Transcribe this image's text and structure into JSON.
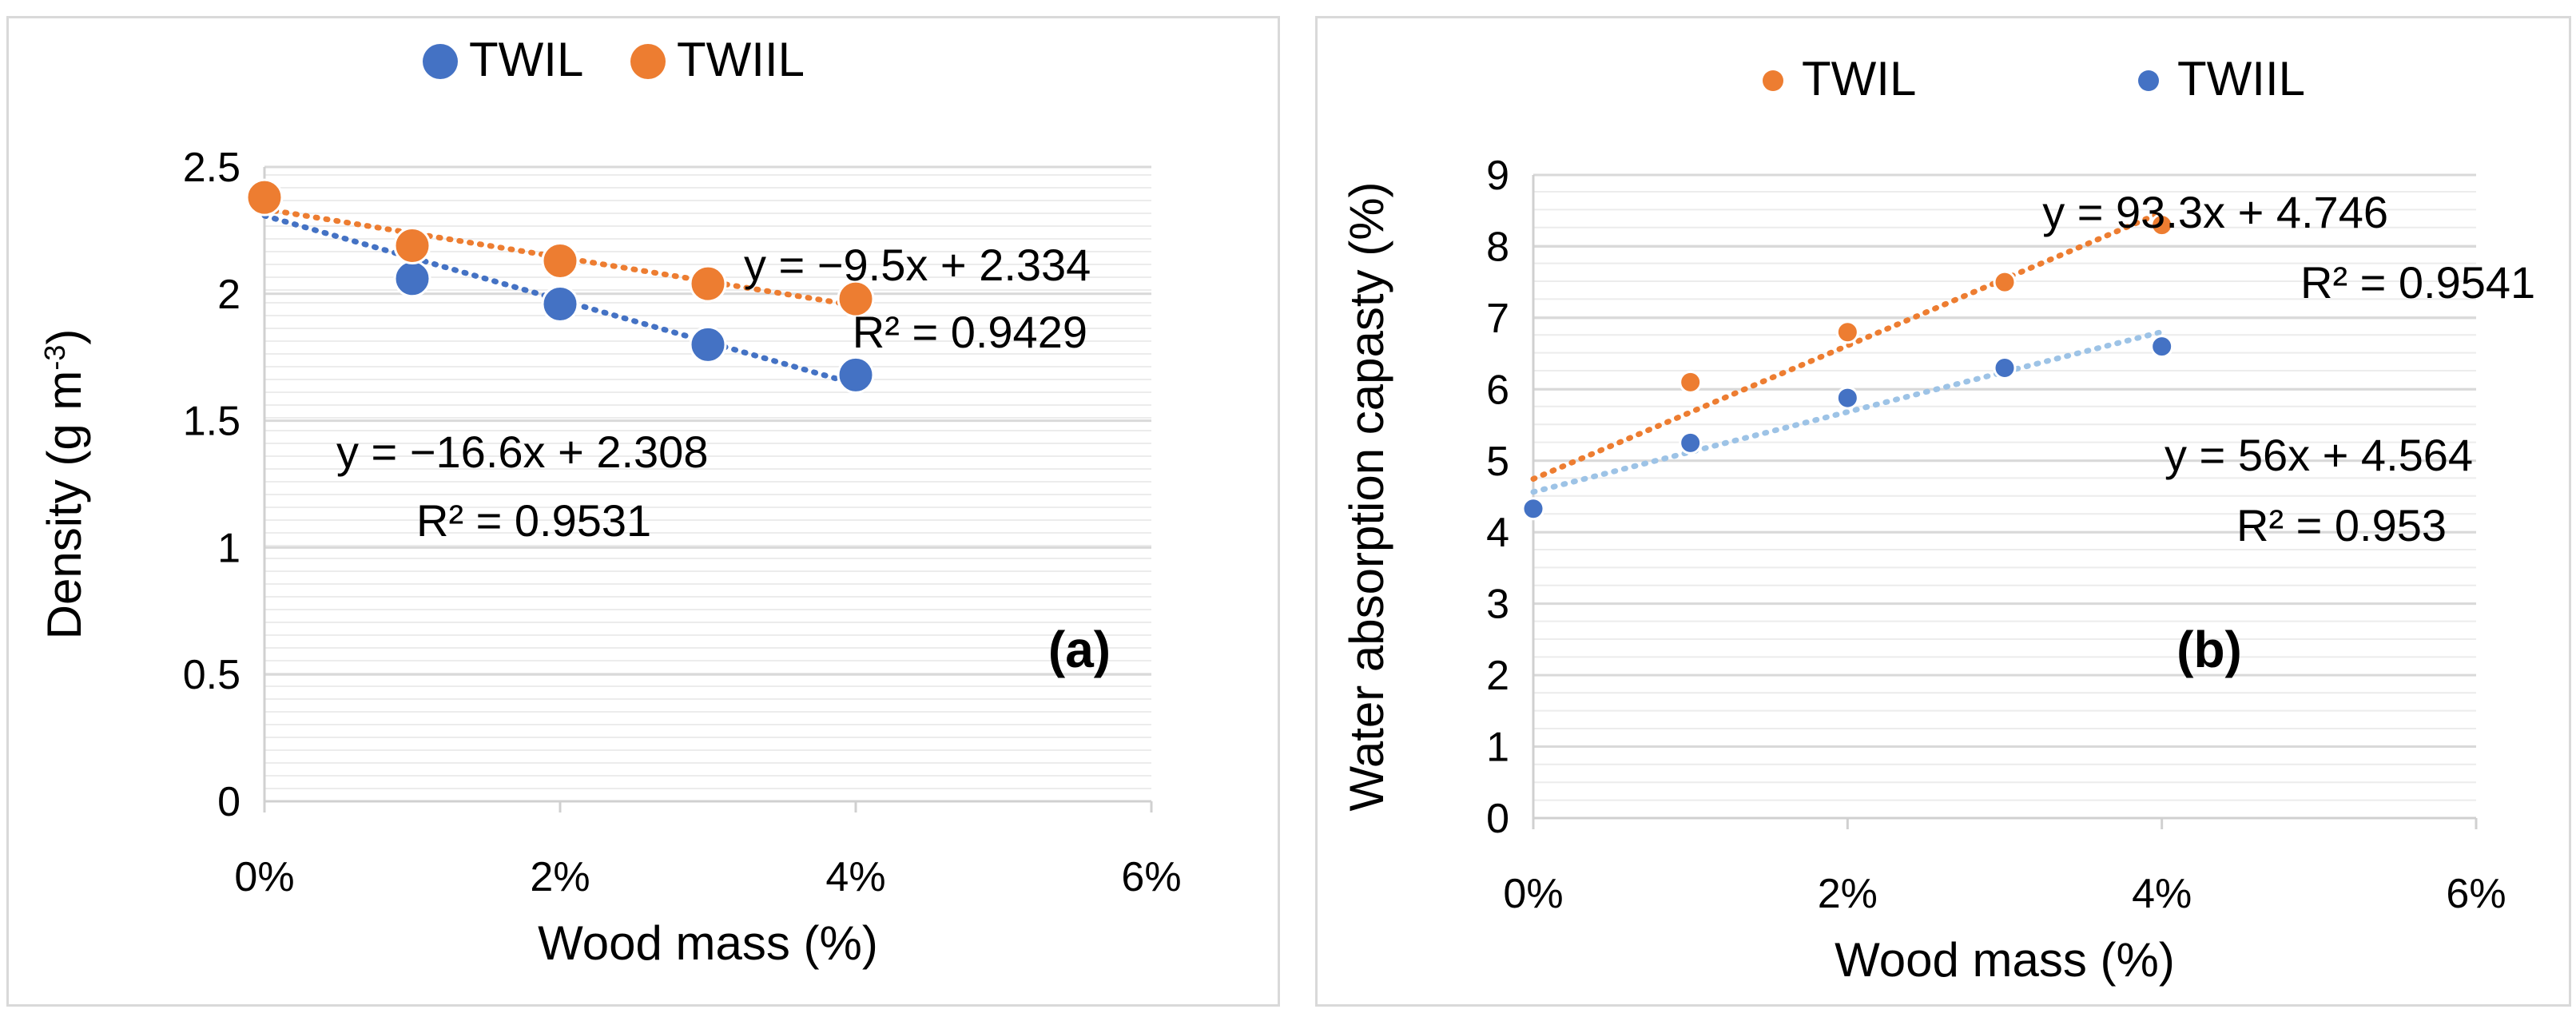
{
  "chart_data": [
    {
      "id": "a",
      "type": "scatter",
      "panel_label": "(a)",
      "xlabel": "Wood mass (%)",
      "ylabel": "Density (g m",
      "ylabel_sup": "-3",
      "ylabel_end": ")",
      "xlim": [
        0,
        6
      ],
      "ylim": [
        0,
        2.5
      ],
      "x_ticks": [
        "0%",
        "2%",
        "4%",
        "6%"
      ],
      "y_ticks": [
        "0",
        "0.5",
        "1",
        "1.5",
        "2",
        "2.5"
      ],
      "legend_position": "top-center",
      "series": [
        {
          "name": "TWIL",
          "color": "#4472c4",
          "x": [
            1,
            2,
            3,
            4
          ],
          "y": [
            2.06,
            1.96,
            1.8,
            1.68
          ],
          "trendline": {
            "x0": 0,
            "y0": 2.308,
            "x1": 4,
            "y1": 1.644,
            "equation": "y = −16.6x + 2.308",
            "r2": "R² = 0.9531"
          }
        },
        {
          "name": "TWIIL",
          "color": "#ed7d31",
          "x": [
            0,
            1,
            2,
            3,
            4
          ],
          "y": [
            2.38,
            2.19,
            2.13,
            2.04,
            1.98
          ],
          "trendline": {
            "x0": 0,
            "y0": 2.334,
            "x1": 4,
            "y1": 1.954,
            "equation": "y = −9.5x + 2.334",
            "r2": "R² = 0.9429"
          }
        }
      ]
    },
    {
      "id": "b",
      "type": "scatter",
      "panel_label": "(b)",
      "xlabel": "Wood mass (%)",
      "ylabel": "Water absorption capasty (%)",
      "xlim": [
        0,
        6
      ],
      "ylim": [
        0,
        9
      ],
      "x_ticks": [
        "0%",
        "2%",
        "4%",
        "6%"
      ],
      "y_ticks": [
        "0",
        "1",
        "2",
        "3",
        "4",
        "5",
        "6",
        "7",
        "8",
        "9"
      ],
      "legend_position": "top-center",
      "series": [
        {
          "name": "TWIL",
          "color": "#ed7d31",
          "x": [
            1,
            2,
            3,
            4
          ],
          "y": [
            6.1,
            6.8,
            7.5,
            8.3
          ],
          "trendline": {
            "x0": 0,
            "y0": 4.746,
            "x1": 4,
            "y1": 8.478,
            "equation": "y = 93.3x + 4.746",
            "r2": "R² = 0.9541"
          }
        },
        {
          "name": "TWIIL",
          "color": "#4472c4",
          "trend_color": "#9dc3e6",
          "x": [
            0,
            1,
            2,
            3,
            4
          ],
          "y": [
            4.33,
            5.25,
            5.88,
            6.3,
            6.6
          ],
          "trendline": {
            "x0": 0,
            "y0": 4.564,
            "x1": 4,
            "y1": 6.804,
            "equation": "y = 56x + 4.564",
            "r2": "R² = 0.953"
          }
        }
      ]
    }
  ]
}
